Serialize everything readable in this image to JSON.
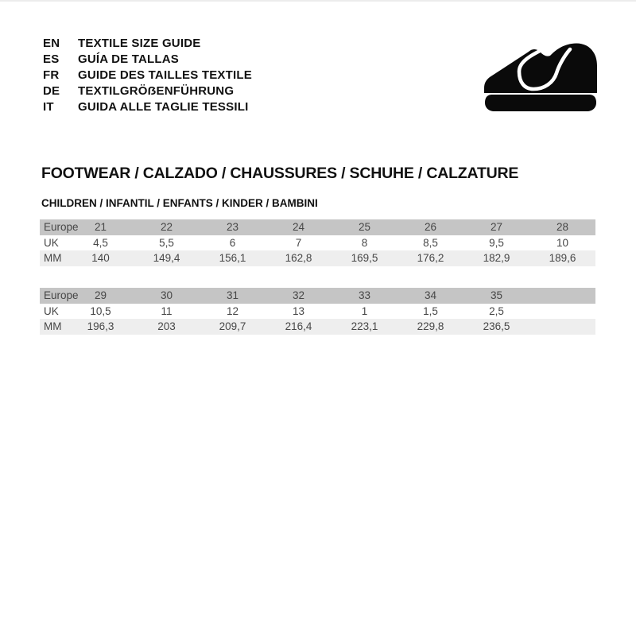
{
  "header": {
    "languages": [
      {
        "code": "EN",
        "label": "TEXTILE SIZE GUIDE"
      },
      {
        "code": "ES",
        "label": "GUÍA DE TALLAS"
      },
      {
        "code": "FR",
        "label": "GUIDE DES TAILLES TEXTILE"
      },
      {
        "code": "DE",
        "label": "TEXTILGRÖẞENFÜHRUNG"
      },
      {
        "code": "IT",
        "label": "GUIDA ALLE TAGLIE TESSILI"
      }
    ],
    "icon": "children-shoe-icon"
  },
  "section": {
    "category_title": "FOOTWEAR / CALZADO / CHAUSSURES / SCHUHE / CALZATURE",
    "audience_title": "CHILDREN / INFANTIL / ENFANTS / KINDER / BAMBINI"
  },
  "tables": [
    {
      "rows": [
        {
          "label": "Europe",
          "values": [
            "21",
            "22",
            "23",
            "24",
            "25",
            "26",
            "27",
            "28"
          ]
        },
        {
          "label": "UK",
          "values": [
            "4,5",
            "5,5",
            "6",
            "7",
            "8",
            "8,5",
            "9,5",
            "10"
          ]
        },
        {
          "label": "MM",
          "values": [
            "140",
            "149,4",
            "156,1",
            "162,8",
            "169,5",
            "176,2",
            "182,9",
            "189,6"
          ]
        }
      ]
    },
    {
      "rows": [
        {
          "label": "Europe",
          "values": [
            "29",
            "30",
            "31",
            "32",
            "33",
            "34",
            "35",
            ""
          ]
        },
        {
          "label": "UK",
          "values": [
            "10,5",
            "11",
            "12",
            "13",
            "1",
            "1,5",
            "2,5",
            ""
          ]
        },
        {
          "label": "MM",
          "values": [
            "196,3",
            "203",
            "209,7",
            "216,4",
            "223,1",
            "229,8",
            "236,5",
            ""
          ]
        }
      ]
    }
  ],
  "colors": {
    "header_row_bg": "#c5c5c5",
    "alt_row_bg": "#eeeeee",
    "table_text": "#474747",
    "heading_text": "#111111",
    "icon_color": "#0a0a0a"
  }
}
